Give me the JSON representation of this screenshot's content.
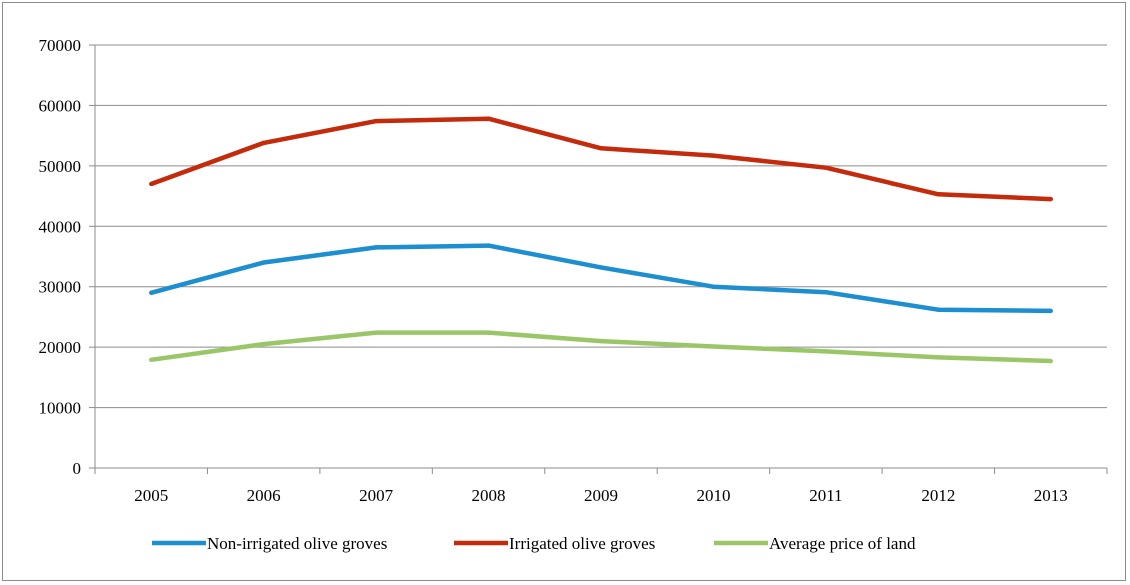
{
  "chart_data": {
    "type": "line",
    "title": "",
    "xlabel": "",
    "ylabel": "",
    "categories": [
      "2005",
      "2006",
      "2007",
      "2008",
      "2009",
      "2010",
      "2011",
      "2012",
      "2013"
    ],
    "ylim": [
      0,
      70000
    ],
    "yticks": [
      "0",
      "10000",
      "20000",
      "30000",
      "40000",
      "50000",
      "60000",
      "70000"
    ],
    "grid": "horizontal",
    "legend_position": "bottom",
    "series": [
      {
        "name": "Non-irrigated olive groves",
        "color": "#1d8ecf",
        "values": [
          29000,
          34000,
          36500,
          36800,
          33200,
          30000,
          29100,
          26200,
          26000
        ]
      },
      {
        "name": "Irrigated olive groves",
        "color": "#c42a0c",
        "values": [
          47000,
          53800,
          57400,
          57800,
          52900,
          51700,
          49700,
          45300,
          44500
        ]
      },
      {
        "name": "Average price of land",
        "color": "#9bc668",
        "values": [
          17900,
          20500,
          22400,
          22400,
          21000,
          20100,
          19300,
          18300,
          17700
        ]
      }
    ]
  }
}
